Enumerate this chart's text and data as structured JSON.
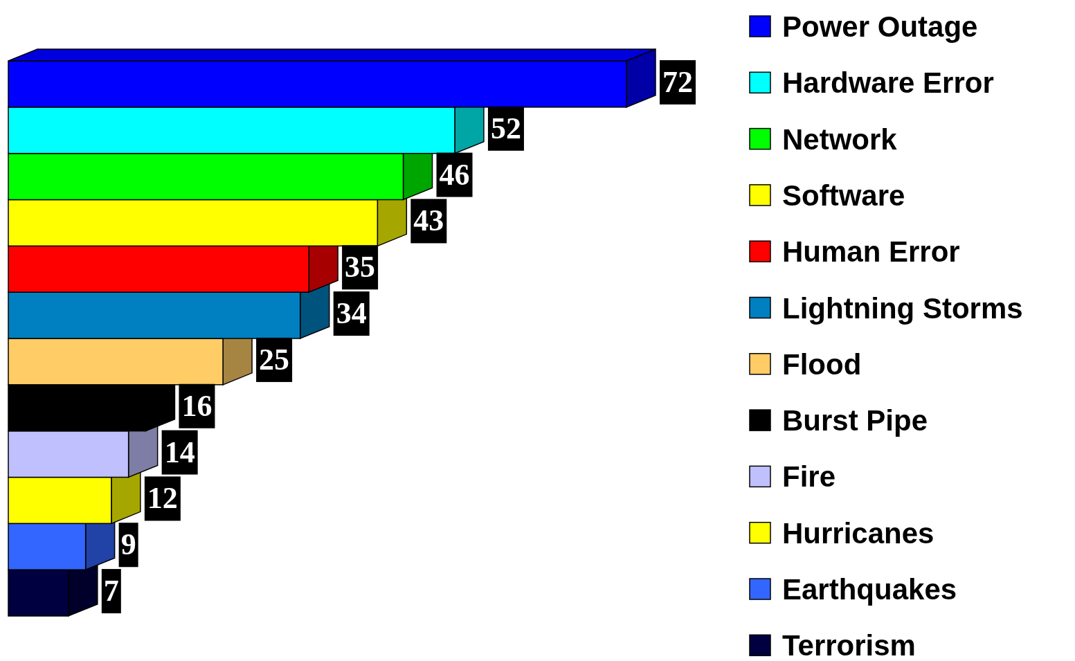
{
  "chart_data": {
    "type": "bar",
    "orientation": "horizontal",
    "categories": [
      null,
      null,
      null,
      null,
      null,
      null,
      null,
      null,
      null,
      null,
      null,
      null
    ],
    "series": [
      {
        "name": "Power Outage",
        "color": "#0000ff",
        "values": [
          72,
          null,
          null,
          null,
          null,
          null,
          null,
          null,
          null,
          null,
          null,
          null
        ]
      },
      {
        "name": "Hardware Error",
        "color": "#00ffff",
        "values": [
          null,
          52,
          null,
          null,
          null,
          null,
          null,
          null,
          null,
          null,
          null,
          null
        ]
      },
      {
        "name": "Network",
        "color": "#00ff00",
        "values": [
          null,
          null,
          46,
          null,
          null,
          null,
          null,
          null,
          null,
          null,
          null,
          null
        ]
      },
      {
        "name": "Software",
        "color": "#ffff00",
        "values": [
          null,
          null,
          null,
          43,
          null,
          null,
          null,
          null,
          null,
          null,
          null,
          null
        ]
      },
      {
        "name": "Human Error",
        "color": "#ff0000",
        "values": [
          null,
          null,
          null,
          null,
          35,
          null,
          null,
          null,
          null,
          null,
          null,
          null
        ]
      },
      {
        "name": "Lightning Storms",
        "color": "#0080c0",
        "values": [
          null,
          null,
          null,
          null,
          null,
          34,
          null,
          null,
          null,
          null,
          null,
          null
        ]
      },
      {
        "name": "Flood",
        "color": "#ffcc66",
        "values": [
          null,
          null,
          null,
          null,
          null,
          null,
          25,
          null,
          null,
          null,
          null,
          null
        ]
      },
      {
        "name": "Burst Pipe",
        "color": "#000000",
        "values": [
          null,
          null,
          null,
          null,
          null,
          null,
          null,
          16,
          null,
          null,
          null,
          null
        ]
      },
      {
        "name": "Fire",
        "color": "#c0c0ff",
        "values": [
          null,
          null,
          null,
          null,
          null,
          null,
          null,
          null,
          14,
          null,
          null,
          null
        ]
      },
      {
        "name": "Hurricanes",
        "color": "#ffff00",
        "values": [
          null,
          null,
          null,
          null,
          null,
          null,
          null,
          null,
          null,
          12,
          null,
          null
        ]
      },
      {
        "name": "Earthquakes",
        "color": "#3366ff",
        "values": [
          null,
          null,
          null,
          null,
          null,
          null,
          null,
          null,
          null,
          null,
          9,
          null
        ]
      },
      {
        "name": "Terrorism",
        "color": "#000040",
        "values": [
          null,
          null,
          null,
          null,
          null,
          null,
          null,
          null,
          null,
          null,
          null,
          7
        ]
      }
    ],
    "stacked": true,
    "data_labels": true,
    "legend": "right"
  }
}
